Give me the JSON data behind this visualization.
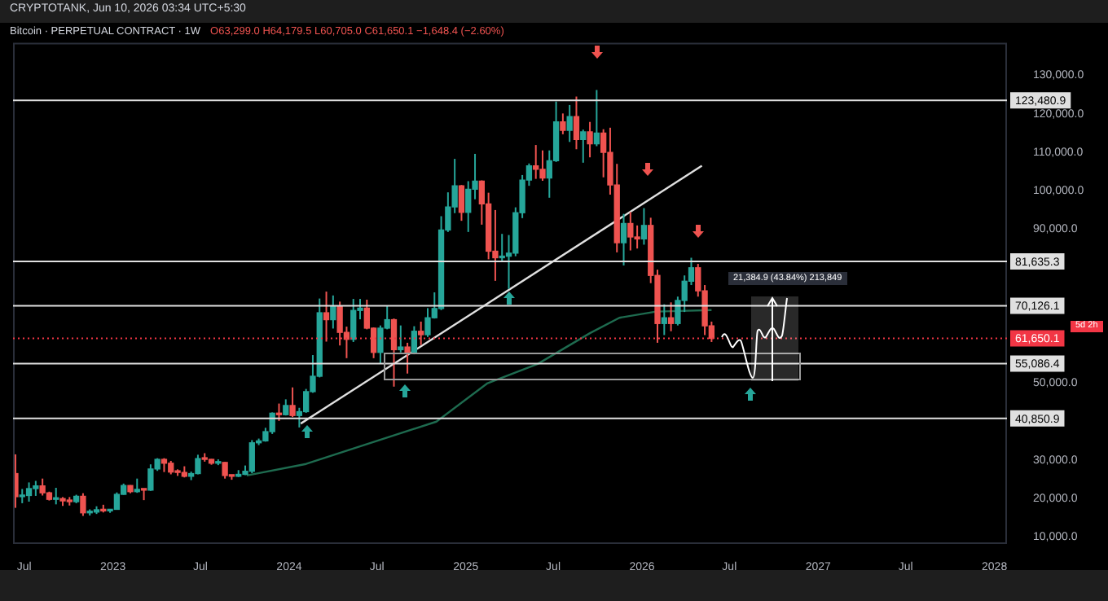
{
  "chart_data": {
    "type": "candlestick",
    "title": "Bitcoin · PERPETUAL CONTRACT · 1W",
    "subtitle": "O63,299.0 H64,179.5 L60,705.0 C61,650.1 −1,648.4 (−2.60%)",
    "annotations": [
      "CRYPTOTANK, Jun 10, 2026 03:34 UTC+5:30",
      "21,384.9 (43.84%) 213,849",
      "5d 2h"
    ],
    "x": [
      "2022-06-13",
      "2022-06-27",
      "2022-07-11",
      "2022-07-25",
      "2022-08-08",
      "2022-08-22",
      "2022-09-05",
      "2022-09-19",
      "2022-10-03",
      "2022-10-17",
      "2022-10-31",
      "2022-11-14",
      "2022-11-28",
      "2022-12-12",
      "2022-12-26",
      "2023-01-09",
      "2023-01-23",
      "2023-02-06",
      "2023-02-20",
      "2023-03-06",
      "2023-03-20",
      "2023-04-03",
      "2023-04-17",
      "2023-05-01",
      "2023-05-15",
      "2023-05-29",
      "2023-06-12",
      "2023-06-26",
      "2023-07-10",
      "2023-07-24",
      "2023-08-07",
      "2023-08-21",
      "2023-09-04",
      "2023-09-18",
      "2023-10-02",
      "2023-10-16",
      "2023-10-30",
      "2023-11-13",
      "2023-11-27",
      "2023-12-11",
      "2023-12-25",
      "2024-01-08",
      "2024-01-22",
      "2024-02-05",
      "2024-02-19",
      "2024-03-04",
      "2024-03-18",
      "2024-04-01",
      "2024-04-15",
      "2024-04-29",
      "2024-05-13",
      "2024-05-27",
      "2024-06-10",
      "2024-06-24",
      "2024-07-08",
      "2024-07-22",
      "2024-08-05",
      "2024-08-19",
      "2024-09-02",
      "2024-09-16",
      "2024-09-30",
      "2024-10-14",
      "2024-10-28",
      "2024-11-11",
      "2024-11-25",
      "2024-12-09",
      "2024-12-23",
      "2025-01-06",
      "2025-01-20",
      "2025-02-03",
      "2025-02-17",
      "2025-03-03",
      "2025-03-17",
      "2025-03-31",
      "2025-04-14",
      "2025-04-28",
      "2025-05-12",
      "2025-05-26",
      "2025-06-09",
      "2025-06-23",
      "2025-07-07",
      "2025-07-21",
      "2025-08-04",
      "2025-08-18",
      "2025-09-01",
      "2025-09-15",
      "2025-09-29",
      "2025-10-13",
      "2025-10-27",
      "2025-11-10",
      "2025-11-24",
      "2025-12-08",
      "2025-12-22",
      "2026-01-05",
      "2026-01-19",
      "2026-02-02",
      "2026-02-16",
      "2026-03-02",
      "2026-03-16",
      "2026-03-30",
      "2026-04-13",
      "2026-04-27",
      "2026-05-11",
      "2026-05-25"
    ],
    "ohlc": [
      [
        26500,
        31500,
        17600,
        20500
      ],
      [
        20500,
        22500,
        18800,
        20800
      ],
      [
        20800,
        24200,
        19200,
        22600
      ],
      [
        22600,
        24600,
        20700,
        23300
      ],
      [
        23300,
        25200,
        20800,
        21500
      ],
      [
        21500,
        21800,
        19500,
        19800
      ],
      [
        19800,
        22800,
        18500,
        20000
      ],
      [
        20000,
        20400,
        18100,
        19400
      ],
      [
        19400,
        20400,
        18200,
        19200
      ],
      [
        19200,
        21000,
        18800,
        20600
      ],
      [
        20600,
        21400,
        15500,
        16300
      ],
      [
        16300,
        17200,
        15600,
        16500
      ],
      [
        16500,
        18000,
        16000,
        17100
      ],
      [
        17100,
        18400,
        16400,
        16800
      ],
      [
        16800,
        17300,
        16300,
        17200
      ],
      [
        17200,
        21600,
        17100,
        21100
      ],
      [
        21100,
        23900,
        21000,
        23400
      ],
      [
        23400,
        23500,
        21400,
        21800
      ],
      [
        21800,
        25200,
        21500,
        22400
      ],
      [
        22400,
        22600,
        19600,
        22200
      ],
      [
        22200,
        28900,
        22000,
        27700
      ],
      [
        27700,
        30500,
        27200,
        30200
      ],
      [
        30200,
        30500,
        26900,
        29200
      ],
      [
        29200,
        29800,
        26300,
        26900
      ],
      [
        26900,
        27600,
        25900,
        26800
      ],
      [
        26800,
        28400,
        25500,
        25800
      ],
      [
        25800,
        27000,
        24800,
        26500
      ],
      [
        26500,
        31400,
        26300,
        30400
      ],
      [
        30400,
        31800,
        29600,
        30200
      ],
      [
        30200,
        30300,
        28800,
        29200
      ],
      [
        29200,
        30200,
        28700,
        29400
      ],
      [
        29400,
        29500,
        25200,
        26000
      ],
      [
        26000,
        26100,
        24900,
        25800
      ],
      [
        25800,
        27400,
        25600,
        26300
      ],
      [
        26300,
        28600,
        26100,
        27100
      ],
      [
        27100,
        35200,
        26600,
        34500
      ],
      [
        34500,
        35600,
        33900,
        35000
      ],
      [
        35000,
        38400,
        34800,
        37400
      ],
      [
        37400,
        42400,
        36800,
        42200
      ],
      [
        42200,
        44700,
        40200,
        41800
      ],
      [
        41800,
        45800,
        41600,
        44200
      ],
      [
        44200,
        48900,
        41200,
        41600
      ],
      [
        41600,
        43600,
        38500,
        42600
      ],
      [
        42600,
        48500,
        42300,
        47800
      ],
      [
        47800,
        57300,
        47500,
        51800
      ],
      [
        51800,
        72000,
        51500,
        68300
      ],
      [
        68300,
        73800,
        60800,
        66500
      ],
      [
        66500,
        72800,
        64200,
        70000
      ],
      [
        70000,
        71200,
        59800,
        63200
      ],
      [
        63200,
        64700,
        56500,
        61400
      ],
      [
        61400,
        71900,
        60700,
        68900
      ],
      [
        68900,
        71900,
        66600,
        69500
      ],
      [
        69500,
        71700,
        64000,
        64300
      ],
      [
        64300,
        64500,
        56500,
        58000
      ],
      [
        58000,
        65000,
        55000,
        64300
      ],
      [
        64300,
        70000,
        64000,
        66500
      ],
      [
        66500,
        66800,
        49100,
        58700
      ],
      [
        58700,
        65000,
        58000,
        59400
      ],
      [
        59400,
        60500,
        52500,
        58000
      ],
      [
        58000,
        64800,
        57500,
        63500
      ],
      [
        63500,
        66000,
        59900,
        62600
      ],
      [
        62600,
        69500,
        62000,
        67000
      ],
      [
        67000,
        73600,
        66800,
        69400
      ],
      [
        69400,
        93400,
        69000,
        89800
      ],
      [
        89800,
        99600,
        89300,
        95800
      ],
      [
        95800,
        108300,
        94200,
        101300
      ],
      [
        101300,
        101500,
        92200,
        94400
      ],
      [
        94400,
        102500,
        89300,
        100400
      ],
      [
        100400,
        109600,
        97800,
        102500
      ],
      [
        102500,
        102700,
        91200,
        96600
      ],
      [
        96600,
        99500,
        82200,
        84300
      ],
      [
        84300,
        95000,
        76600,
        82600
      ],
      [
        82600,
        88800,
        81600,
        83000
      ],
      [
        83000,
        88500,
        74500,
        83800
      ],
      [
        83800,
        95700,
        83000,
        94300
      ],
      [
        94300,
        104100,
        92900,
        102800
      ],
      [
        102800,
        107100,
        101300,
        106500
      ],
      [
        106500,
        111900,
        103100,
        105600
      ],
      [
        105600,
        110500,
        102600,
        103300
      ],
      [
        103300,
        110500,
        98200,
        107800
      ],
      [
        107800,
        123200,
        107500,
        117900
      ],
      [
        117900,
        120100,
        114700,
        115700
      ],
      [
        115700,
        122300,
        112700,
        119300
      ],
      [
        119300,
        124500,
        110800,
        113300
      ],
      [
        113300,
        115900,
        107300,
        115300
      ],
      [
        115300,
        117900,
        108700,
        112200
      ],
      [
        112200,
        126200,
        111600,
        115000
      ],
      [
        115000,
        116000,
        103500,
        110000
      ],
      [
        110000,
        116400,
        99000,
        101500
      ],
      [
        101500,
        107000,
        84000,
        86500
      ],
      [
        86500,
        94000,
        80600,
        91500
      ],
      [
        91500,
        94500,
        84500,
        88000
      ],
      [
        88000,
        91000,
        85000,
        87500
      ],
      [
        87500,
        95500,
        86000,
        91000
      ],
      [
        91000,
        93000,
        76000,
        78000
      ],
      [
        78000,
        79500,
        60500,
        65500
      ],
      [
        65500,
        70500,
        62500,
        67000
      ],
      [
        67000,
        71000,
        63500,
        65500
      ],
      [
        65500,
        72500,
        65000,
        71500
      ],
      [
        71500,
        78000,
        68500,
        76500
      ],
      [
        76500,
        82600,
        75500,
        80000
      ],
      [
        80000,
        81000,
        72500,
        74000
      ],
      [
        74000,
        75500,
        62500,
        64900
      ],
      [
        64900,
        66000,
        60705,
        61650.1
      ]
    ],
    "series": [
      {
        "type": "line",
        "color": "#1e6b4f",
        "x": [
          "2023-10-05",
          "2024-02-05",
          "2024-11-01",
          "2025-02-15",
          "2025-05-30",
          "2025-09-15",
          "2025-11-15",
          "2026-01-30",
          "2026-05-25"
        ],
        "values": [
          26000,
          29000,
          40000,
          50000,
          55000,
          63000,
          67000,
          68600,
          69000
        ]
      },
      {
        "type": "line",
        "color": "#e0e0e0",
        "x": [
          "2024-01-25",
          "2026-05-05"
        ],
        "values": [
          39500,
          106500
        ]
      }
    ],
    "ref_lines": [
      {
        "axis": "y",
        "value": 123480.9,
        "label": "123,480.9",
        "color": "#e0e0e0",
        "line_style": "solid"
      },
      {
        "axis": "y",
        "value": 81635.3,
        "label": "81,635.3",
        "color": "#e0e0e0",
        "line_style": "solid"
      },
      {
        "axis": "y",
        "value": 70126.1,
        "label": "70,126.1",
        "color": "#e0e0e0",
        "line_style": "solid"
      },
      {
        "axis": "y",
        "value": 55086.4,
        "label": "55,086.4",
        "color": "#e0e0e0",
        "line_style": "solid"
      },
      {
        "axis": "y",
        "value": 40850.9,
        "label": "40,850.9",
        "color": "#e0e0e0",
        "line_style": "solid"
      },
      {
        "axis": "y",
        "value": 61650.1,
        "label": "61,650.1",
        "color": "#f23645",
        "line_style": "dotted"
      }
    ],
    "xlim": [
      "2022-06-08",
      "2028-01-27"
    ],
    "xticks": [
      {
        "value": "2022-07-01",
        "label": "Jul"
      },
      {
        "value": "2023-01-01",
        "label": "2023"
      },
      {
        "value": "2023-07-01",
        "label": "Jul"
      },
      {
        "value": "2024-01-01",
        "label": "2024"
      },
      {
        "value": "2024-07-01",
        "label": "Jul"
      },
      {
        "value": "2025-01-01",
        "label": "2025"
      },
      {
        "value": "2025-07-01",
        "label": "Jul"
      },
      {
        "value": "2026-01-01",
        "label": "2026"
      },
      {
        "value": "2026-07-01",
        "label": "Jul"
      },
      {
        "value": "2027-01-01",
        "label": "2027"
      },
      {
        "value": "2027-07-01",
        "label": "Jul"
      },
      {
        "value": "2028-01-01",
        "label": "2028"
      }
    ],
    "ylim": [
      8200,
      138500
    ],
    "yticks": [
      {
        "value": 10000,
        "label": "10,000.0"
      },
      {
        "value": 20000,
        "label": "20,000.0"
      },
      {
        "value": 30000,
        "label": "30,000.0"
      },
      {
        "value": 50000,
        "label": "50,000.0"
      },
      {
        "value": 90000,
        "label": "90,000.0"
      },
      {
        "value": 100000,
        "label": "100,000.0"
      },
      {
        "value": 110000,
        "label": "110,000.0"
      },
      {
        "value": 120000,
        "label": "120,000.0"
      },
      {
        "value": 130000,
        "label": "130,000.0"
      }
    ],
    "grid": false,
    "legend": false
  }
}
